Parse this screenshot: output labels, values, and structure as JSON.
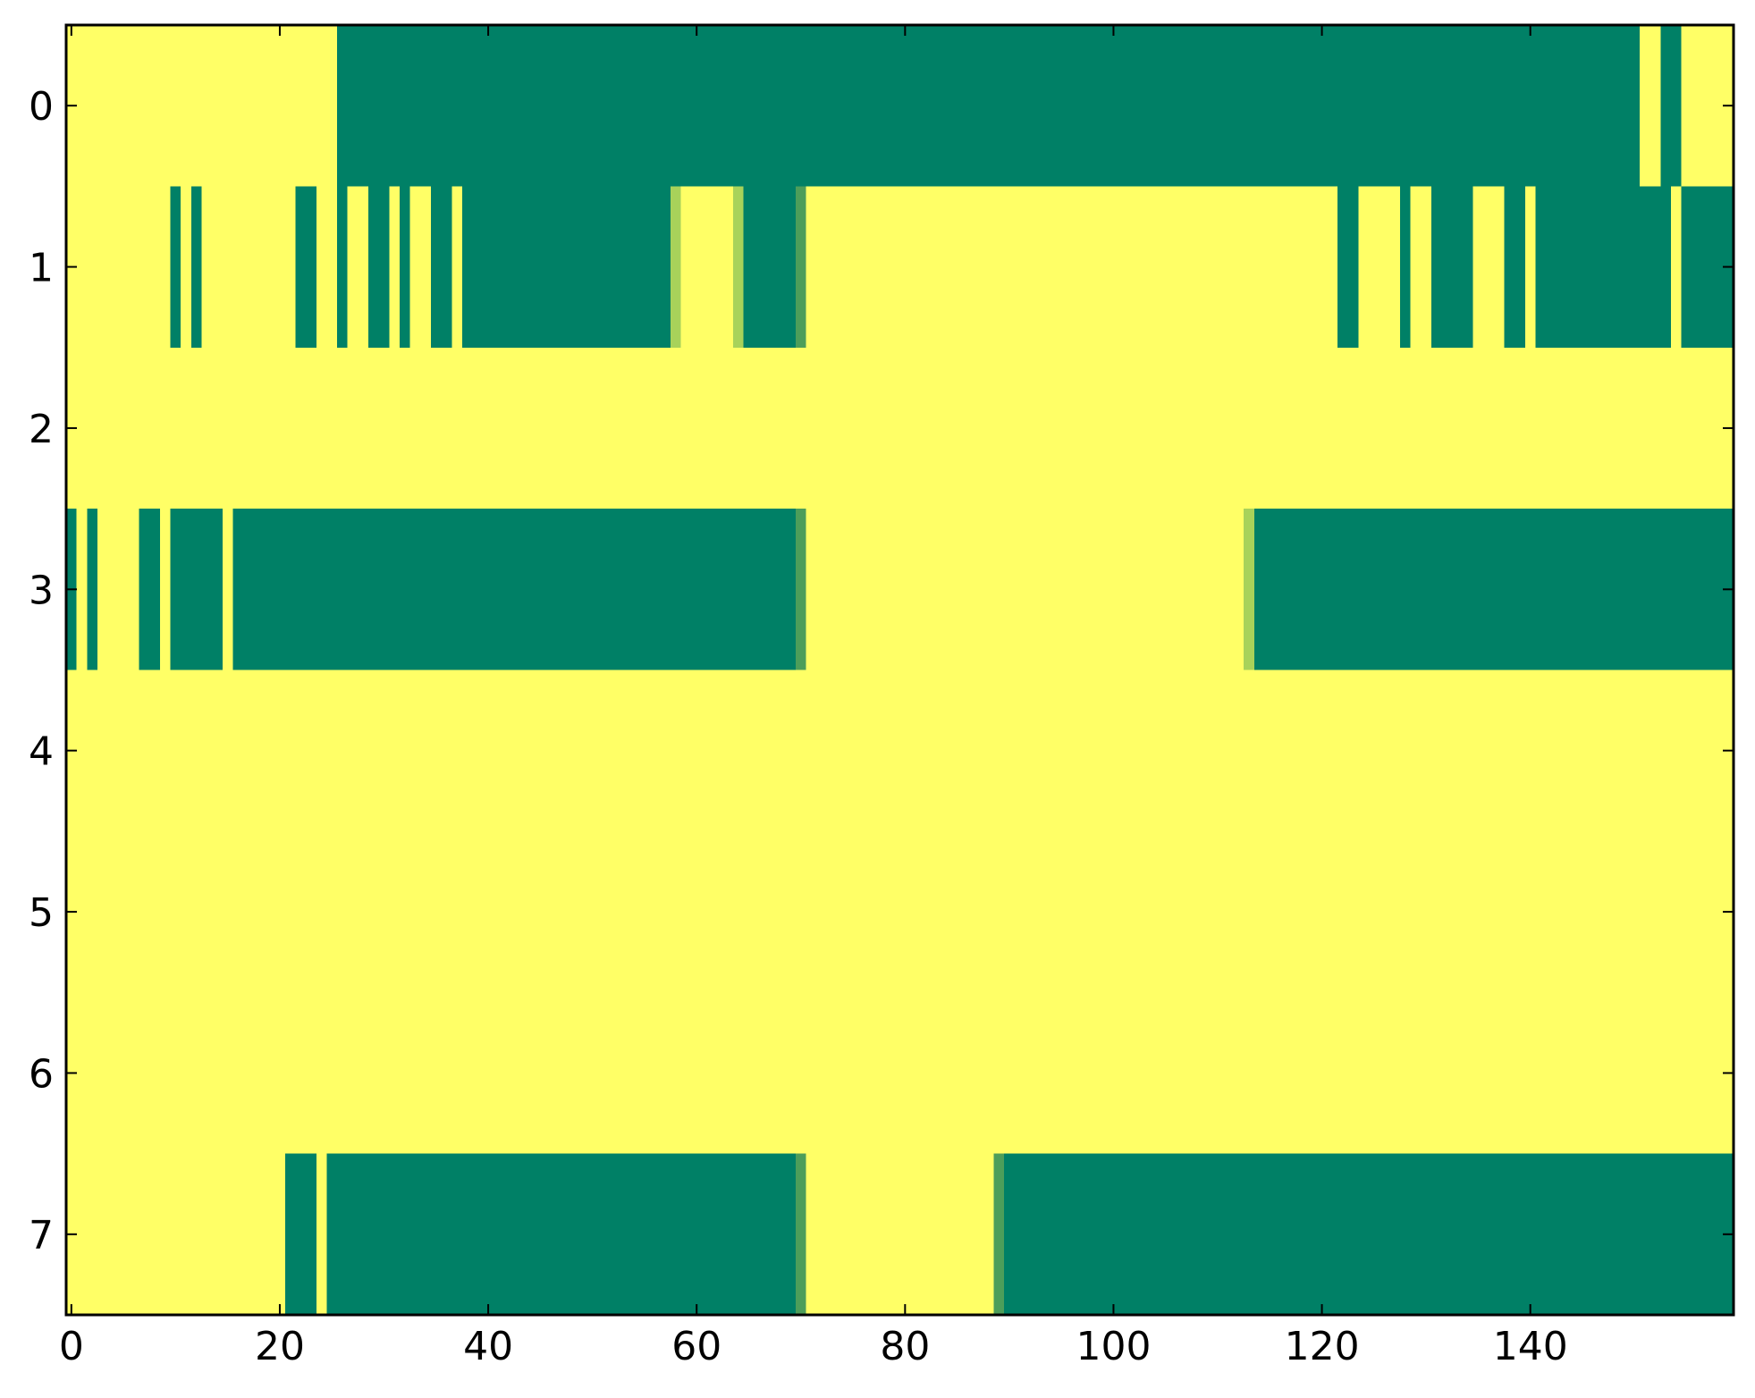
{
  "chart_data": {
    "type": "heatmap",
    "title": "",
    "xlabel": "",
    "ylabel": "",
    "xlim": [
      -0.5,
      159.5
    ],
    "ylim": [
      7.5,
      -0.5
    ],
    "xticks": [
      0,
      20,
      40,
      60,
      80,
      100,
      120,
      140
    ],
    "yticks": [
      0,
      1,
      2,
      3,
      4,
      5,
      6,
      7
    ],
    "n_columns": 160,
    "n_rows": 8,
    "colors": {
      "background": "#ffff66",
      "low": "#008066",
      "mid_light": "#a8d25a",
      "mid_dark": "#4d9e5a"
    },
    "grid": false,
    "legend": "none",
    "rows": [
      {
        "row": 0,
        "segments": [
          [
            26,
            150,
            "low"
          ],
          [
            153,
            154,
            "low"
          ]
        ]
      },
      {
        "row": 1,
        "segments": [
          [
            10,
            10,
            "low"
          ],
          [
            12,
            12,
            "low"
          ],
          [
            22,
            23,
            "low"
          ],
          [
            26,
            26,
            "low"
          ],
          [
            29,
            30,
            "low"
          ],
          [
            32,
            32,
            "low"
          ],
          [
            35,
            36,
            "low"
          ],
          [
            38,
            57,
            "low"
          ],
          [
            58,
            58,
            "mid_light"
          ],
          [
            64,
            64,
            "mid_light"
          ],
          [
            65,
            69,
            "low"
          ],
          [
            70,
            70,
            "mid_dark"
          ],
          [
            122,
            123,
            "low"
          ],
          [
            128,
            128,
            "low"
          ],
          [
            131,
            134,
            "low"
          ],
          [
            138,
            139,
            "low"
          ],
          [
            141,
            141,
            "low"
          ],
          [
            142,
            153,
            "low"
          ],
          [
            155,
            159,
            "low"
          ]
        ]
      },
      {
        "row": 2,
        "segments": []
      },
      {
        "row": 3,
        "segments": [
          [
            0,
            0,
            "low"
          ],
          [
            2,
            2,
            "low"
          ],
          [
            7,
            8,
            "low"
          ],
          [
            10,
            14,
            "low"
          ],
          [
            16,
            69,
            "low"
          ],
          [
            70,
            70,
            "mid_dark"
          ],
          [
            113,
            113,
            "mid_light"
          ],
          [
            114,
            159,
            "low"
          ]
        ]
      },
      {
        "row": 4,
        "segments": []
      },
      {
        "row": 5,
        "segments": []
      },
      {
        "row": 6,
        "segments": []
      },
      {
        "row": 7,
        "segments": [
          [
            21,
            23,
            "low"
          ],
          [
            25,
            69,
            "low"
          ],
          [
            70,
            70,
            "mid_dark"
          ],
          [
            89,
            89,
            "mid_dark"
          ],
          [
            90,
            159,
            "low"
          ]
        ]
      }
    ]
  }
}
